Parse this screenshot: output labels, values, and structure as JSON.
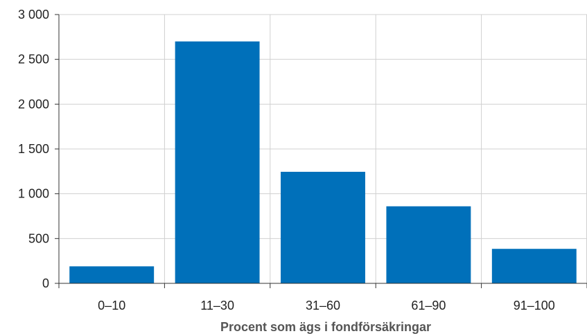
{
  "chart_data": {
    "type": "bar",
    "categories": [
      "0–10",
      "11–30",
      "31–60",
      "61–90",
      "91–100"
    ],
    "values": [
      190,
      2700,
      1245,
      860,
      385
    ],
    "title": "",
    "xlabel": "Procent som ägs i fondförsäkringar",
    "ylabel": "",
    "ylim": [
      0,
      3000
    ],
    "yticks": [
      0,
      500,
      1000,
      1500,
      2000,
      2500,
      3000
    ],
    "ytick_labels": [
      "0",
      "500",
      "1 000",
      "1 500",
      "2 000",
      "2 500",
      "3 000"
    ],
    "grid": true,
    "bar_color": "#0070BA"
  }
}
